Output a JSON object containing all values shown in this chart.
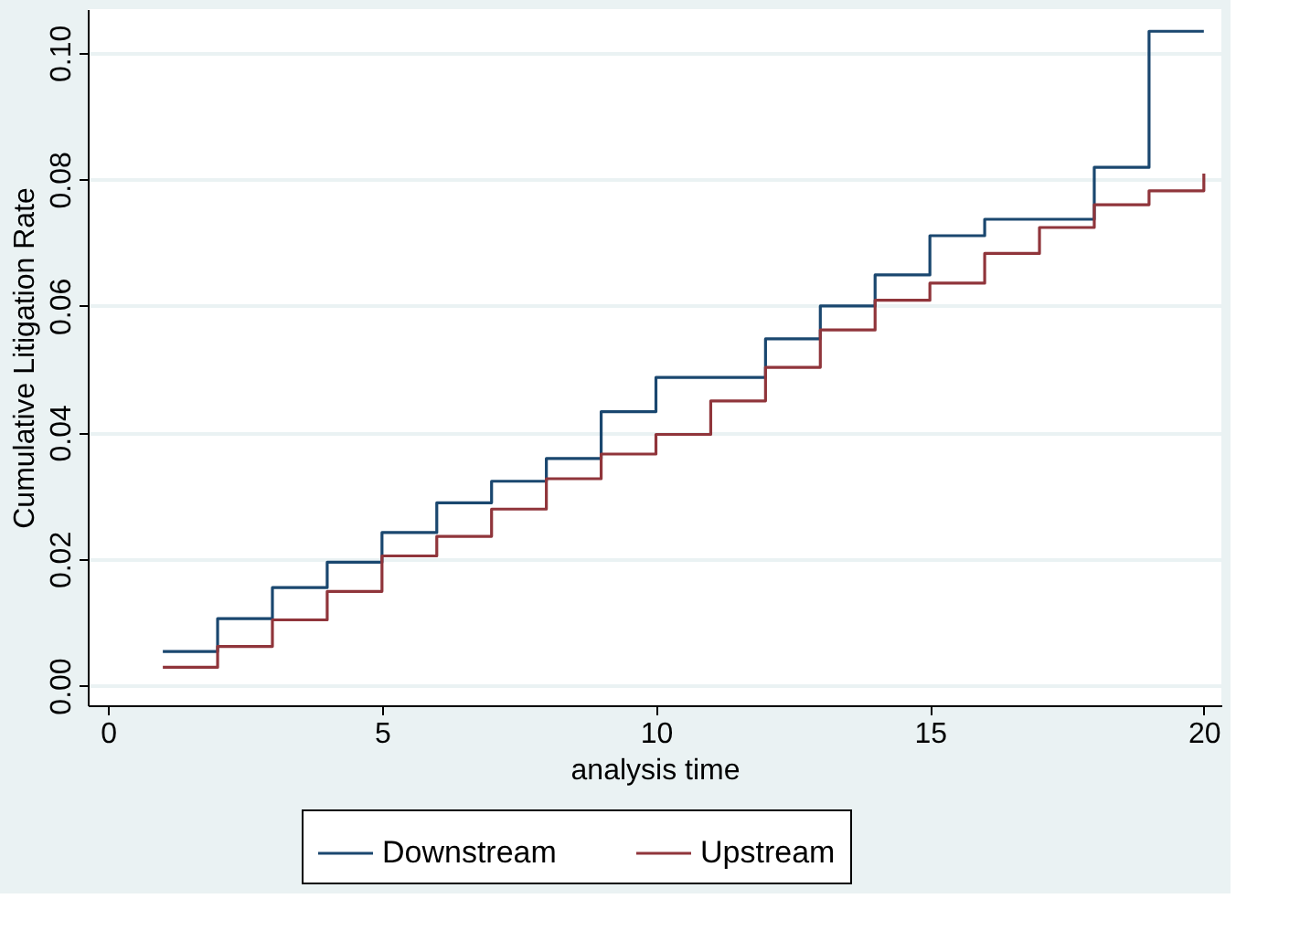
{
  "chart_data": {
    "type": "step",
    "xlabel": "analysis time",
    "ylabel": "Cumulative Litigation Rate",
    "x": [
      1,
      2,
      3,
      4,
      5,
      6,
      7,
      8,
      9,
      10,
      11,
      12,
      13,
      14,
      15,
      16,
      17,
      18,
      19,
      20
    ],
    "series": [
      {
        "name": "Downstream",
        "color": "#1a476f",
        "values": [
          0.0054,
          0.0106,
          0.0155,
          0.0195,
          0.0242,
          0.0289,
          0.0323,
          0.0359,
          0.0433,
          0.0487,
          0.0487,
          0.0548,
          0.06,
          0.0649,
          0.0711,
          0.0737,
          0.0737,
          0.0819,
          0.1034,
          0.1034
        ]
      },
      {
        "name": "Upstream",
        "color": "#90353b",
        "values": [
          0.0029,
          0.0062,
          0.0104,
          0.0149,
          0.0205,
          0.0236,
          0.0279,
          0.0327,
          0.0366,
          0.0397,
          0.045,
          0.0503,
          0.0562,
          0.0609,
          0.0636,
          0.0683,
          0.0724,
          0.076,
          0.0782,
          0.0809
        ]
      }
    ],
    "xlim": [
      -0.37,
      20.32
    ],
    "xticks": [
      0,
      5,
      10,
      15,
      20
    ],
    "ylim": [
      -0.0031,
      0.1069
    ],
    "yticks": [
      {
        "value": 0,
        "label": "0.00"
      },
      {
        "value": 0.02,
        "label": "0.02"
      },
      {
        "value": 0.04,
        "label": "0.04"
      },
      {
        "value": 0.06,
        "label": "0.06"
      },
      {
        "value": 0.08,
        "label": "0.08"
      },
      {
        "value": 0.1,
        "label": "0.10"
      }
    ],
    "grid": "y",
    "legend": "bottom",
    "marker": "none",
    "line_style": "solid"
  }
}
